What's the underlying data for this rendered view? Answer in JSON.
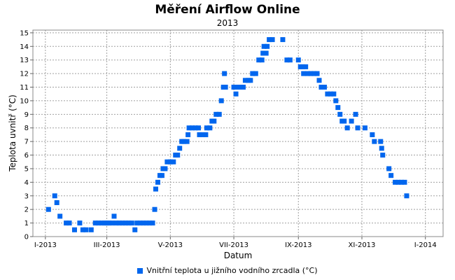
{
  "chart_data": {
    "type": "scatter",
    "title": "Měření Airflow Online",
    "subtitle": "2013",
    "xlabel": "Datum",
    "ylabel": "Teplota uvnitř (°C)",
    "x_tick_labels": [
      "I-2013",
      "III-2013",
      "V-2013",
      "VII-2013",
      "IX-2013",
      "XI-2013",
      "I-2014"
    ],
    "x_tick_dates": [
      "2013-01-01",
      "2013-03-01",
      "2013-05-01",
      "2013-07-01",
      "2013-09-01",
      "2013-11-01",
      "2014-01-01"
    ],
    "xlim": [
      "2012-12-20",
      "2014-01-18"
    ],
    "ylim": [
      0,
      15.2
    ],
    "y_ticks": [
      0,
      1,
      2,
      3,
      4,
      5,
      6,
      7,
      8,
      9,
      10,
      11,
      12,
      13,
      14,
      15
    ],
    "grid": true,
    "legend_position": "bottom",
    "series": [
      {
        "name": "Vnitřní teplota u jižního vodního zrcadla (°C)",
        "color": "#0066ee",
        "points": [
          [
            "2013-01-04",
            2.0
          ],
          [
            "2013-01-10",
            3.0
          ],
          [
            "2013-01-12",
            2.5
          ],
          [
            "2013-01-15",
            1.5
          ],
          [
            "2013-01-21",
            1.0
          ],
          [
            "2013-01-24",
            1.0
          ],
          [
            "2013-01-29",
            0.5
          ],
          [
            "2013-02-03",
            1.0
          ],
          [
            "2013-02-06",
            0.5
          ],
          [
            "2013-02-09",
            0.5
          ],
          [
            "2013-02-14",
            0.5
          ],
          [
            "2013-02-18",
            1.0
          ],
          [
            "2013-02-21",
            1.0
          ],
          [
            "2013-02-24",
            1.0
          ],
          [
            "2013-02-27",
            1.0
          ],
          [
            "2013-03-01",
            1.0
          ],
          [
            "2013-03-03",
            1.0
          ],
          [
            "2013-03-06",
            1.0
          ],
          [
            "2013-03-08",
            1.5
          ],
          [
            "2013-03-10",
            1.0
          ],
          [
            "2013-03-13",
            1.0
          ],
          [
            "2013-03-16",
            1.0
          ],
          [
            "2013-03-19",
            1.0
          ],
          [
            "2013-03-22",
            1.0
          ],
          [
            "2013-03-25",
            1.0
          ],
          [
            "2013-03-28",
            0.5
          ],
          [
            "2013-03-30",
            1.0
          ],
          [
            "2013-04-02",
            1.0
          ],
          [
            "2013-04-05",
            1.0
          ],
          [
            "2013-04-08",
            1.0
          ],
          [
            "2013-04-11",
            1.0
          ],
          [
            "2013-04-14",
            1.0
          ],
          [
            "2013-04-16",
            2.0
          ],
          [
            "2013-04-17",
            3.5
          ],
          [
            "2013-04-19",
            4.0
          ],
          [
            "2013-04-21",
            4.5
          ],
          [
            "2013-04-23",
            4.5
          ],
          [
            "2013-04-24",
            5.0
          ],
          [
            "2013-04-26",
            5.0
          ],
          [
            "2013-04-28",
            5.5
          ],
          [
            "2013-05-01",
            5.5
          ],
          [
            "2013-05-04",
            5.5
          ],
          [
            "2013-05-06",
            6.0
          ],
          [
            "2013-05-08",
            6.0
          ],
          [
            "2013-05-10",
            6.5
          ],
          [
            "2013-05-12",
            7.0
          ],
          [
            "2013-05-14",
            7.0
          ],
          [
            "2013-05-17",
            7.0
          ],
          [
            "2013-05-18",
            7.5
          ],
          [
            "2013-05-19",
            8.0
          ],
          [
            "2013-05-22",
            8.0
          ],
          [
            "2013-05-25",
            8.0
          ],
          [
            "2013-05-28",
            8.0
          ],
          [
            "2013-05-29",
            7.5
          ],
          [
            "2013-06-01",
            7.5
          ],
          [
            "2013-06-04",
            7.5
          ],
          [
            "2013-06-05",
            8.0
          ],
          [
            "2013-06-08",
            8.0
          ],
          [
            "2013-06-10",
            8.5
          ],
          [
            "2013-06-12",
            8.5
          ],
          [
            "2013-06-14",
            9.0
          ],
          [
            "2013-06-17",
            9.0
          ],
          [
            "2013-06-19",
            10.0
          ],
          [
            "2013-06-21",
            11.0
          ],
          [
            "2013-06-23",
            11.0
          ],
          [
            "2013-06-22",
            12.0
          ],
          [
            "2013-07-01",
            11.0
          ],
          [
            "2013-07-03",
            10.5
          ],
          [
            "2013-07-04",
            11.0
          ],
          [
            "2013-07-07",
            11.0
          ],
          [
            "2013-07-10",
            11.0
          ],
          [
            "2013-07-12",
            11.5
          ],
          [
            "2013-07-15",
            11.5
          ],
          [
            "2013-07-17",
            11.5
          ],
          [
            "2013-07-19",
            12.0
          ],
          [
            "2013-07-22",
            12.0
          ],
          [
            "2013-07-25",
            13.0
          ],
          [
            "2013-07-28",
            13.0
          ],
          [
            "2013-07-29",
            13.5
          ],
          [
            "2013-07-30",
            14.0
          ],
          [
            "2013-08-01",
            13.5
          ],
          [
            "2013-08-02",
            14.0
          ],
          [
            "2013-08-04",
            14.5
          ],
          [
            "2013-08-07",
            14.5
          ],
          [
            "2013-08-17",
            14.5
          ],
          [
            "2013-08-21",
            13.0
          ],
          [
            "2013-08-24",
            13.0
          ],
          [
            "2013-09-01",
            13.0
          ],
          [
            "2013-09-03",
            12.5
          ],
          [
            "2013-09-05",
            12.5
          ],
          [
            "2013-09-06",
            12.0
          ],
          [
            "2013-09-08",
            12.5
          ],
          [
            "2013-09-10",
            12.0
          ],
          [
            "2013-09-13",
            12.0
          ],
          [
            "2013-09-16",
            12.0
          ],
          [
            "2013-09-19",
            12.0
          ],
          [
            "2013-09-21",
            11.5
          ],
          [
            "2013-09-23",
            11.0
          ],
          [
            "2013-09-26",
            11.0
          ],
          [
            "2013-09-29",
            10.5
          ],
          [
            "2013-10-02",
            10.5
          ],
          [
            "2013-10-05",
            10.5
          ],
          [
            "2013-10-07",
            10.0
          ],
          [
            "2013-10-09",
            9.5
          ],
          [
            "2013-10-11",
            9.0
          ],
          [
            "2013-10-13",
            8.5
          ],
          [
            "2013-10-15",
            8.5
          ],
          [
            "2013-10-18",
            8.0
          ],
          [
            "2013-10-22",
            8.5
          ],
          [
            "2013-10-26",
            9.0
          ],
          [
            "2013-10-28",
            8.0
          ],
          [
            "2013-11-04",
            8.0
          ],
          [
            "2013-11-11",
            7.5
          ],
          [
            "2013-11-13",
            7.0
          ],
          [
            "2013-11-19",
            7.0
          ],
          [
            "2013-11-20",
            6.5
          ],
          [
            "2013-11-21",
            6.0
          ],
          [
            "2013-11-27",
            5.0
          ],
          [
            "2013-11-29",
            4.5
          ],
          [
            "2013-12-03",
            4.0
          ],
          [
            "2013-12-06",
            4.0
          ],
          [
            "2013-12-09",
            4.0
          ],
          [
            "2013-12-12",
            4.0
          ],
          [
            "2013-12-14",
            3.0
          ]
        ]
      }
    ]
  }
}
